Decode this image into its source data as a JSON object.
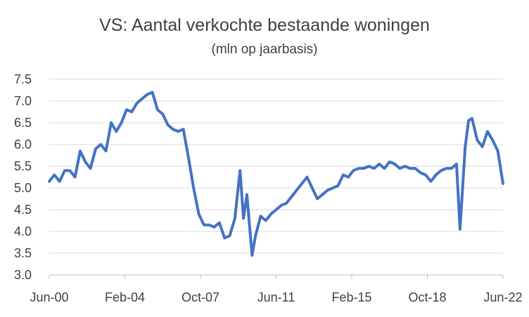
{
  "chart_data": {
    "type": "line",
    "title": "VS: Aantal verkochte bestaande woningen",
    "subtitle": "(mln op jaarbasis)",
    "xlabel": "",
    "ylabel": "",
    "ylim": [
      3.0,
      7.5
    ],
    "yticks": [
      "7.5",
      "7.0",
      "6.5",
      "6.0",
      "5.5",
      "5.0",
      "4.5",
      "4.0",
      "3.5",
      "3.0"
    ],
    "xticks": [
      "Jun-00",
      "Feb-04",
      "Oct-07",
      "Jun-11",
      "Feb-15",
      "Oct-18",
      "Jun-22"
    ],
    "grid": true,
    "legend": "none",
    "series_color": "#4472C4",
    "series": [
      {
        "x": [
          "2000-06",
          "2000-09",
          "2000-12",
          "2001-03",
          "2001-06",
          "2001-09",
          "2001-12",
          "2002-03",
          "2002-06",
          "2002-09",
          "2002-12",
          "2003-03",
          "2003-06",
          "2003-09",
          "2003-12",
          "2004-03",
          "2004-06",
          "2004-09",
          "2004-12",
          "2005-03",
          "2005-06",
          "2005-09",
          "2005-12",
          "2006-03",
          "2006-06",
          "2006-09",
          "2006-12",
          "2007-03",
          "2007-06",
          "2007-09",
          "2007-12",
          "2008-03",
          "2008-06",
          "2008-09",
          "2008-12",
          "2009-03",
          "2009-06",
          "2009-09",
          "2009-11",
          "2010-01",
          "2010-04",
          "2010-06",
          "2010-09",
          "2010-12",
          "2011-01",
          "2011-03",
          "2011-06",
          "2011-09",
          "2011-12",
          "2012-03",
          "2012-06",
          "2012-09",
          "2012-12",
          "2013-03",
          "2013-06",
          "2013-09",
          "2013-12",
          "2014-03",
          "2014-06",
          "2014-09",
          "2014-12",
          "2015-03",
          "2015-06",
          "2015-09",
          "2015-12",
          "2016-03",
          "2016-06",
          "2016-09",
          "2016-12",
          "2017-03",
          "2017-06",
          "2017-09",
          "2017-12",
          "2018-03",
          "2018-06",
          "2018-09",
          "2018-12",
          "2019-03",
          "2019-06",
          "2019-09",
          "2019-12",
          "2020-03",
          "2020-05",
          "2020-08",
          "2020-10",
          "2020-12",
          "2021-03",
          "2021-06",
          "2021-09",
          "2021-12",
          "2022-03",
          "2022-06"
        ],
        "values": [
          5.15,
          5.3,
          5.15,
          5.4,
          5.4,
          5.25,
          5.85,
          5.6,
          5.45,
          5.9,
          6.0,
          5.85,
          6.5,
          6.3,
          6.5,
          6.8,
          6.75,
          6.95,
          7.05,
          7.15,
          7.2,
          6.8,
          6.7,
          6.45,
          6.35,
          6.3,
          6.35,
          5.7,
          5.0,
          4.4,
          4.15,
          4.15,
          4.1,
          4.2,
          3.85,
          3.9,
          4.3,
          5.4,
          4.3,
          4.85,
          3.45,
          3.9,
          4.35,
          4.25,
          4.3,
          4.4,
          4.5,
          4.6,
          4.65,
          4.8,
          4.95,
          5.1,
          5.25,
          5.0,
          4.75,
          4.85,
          4.95,
          5.0,
          5.05,
          5.3,
          5.25,
          5.4,
          5.45,
          5.45,
          5.5,
          5.45,
          5.55,
          5.45,
          5.6,
          5.55,
          5.45,
          5.5,
          5.45,
          5.45,
          5.35,
          5.3,
          5.15,
          5.3,
          5.4,
          5.45,
          5.45,
          5.55,
          4.05,
          5.95,
          6.55,
          6.6,
          6.1,
          5.95,
          6.3,
          6.1,
          5.85,
          5.1
        ]
      }
    ]
  }
}
